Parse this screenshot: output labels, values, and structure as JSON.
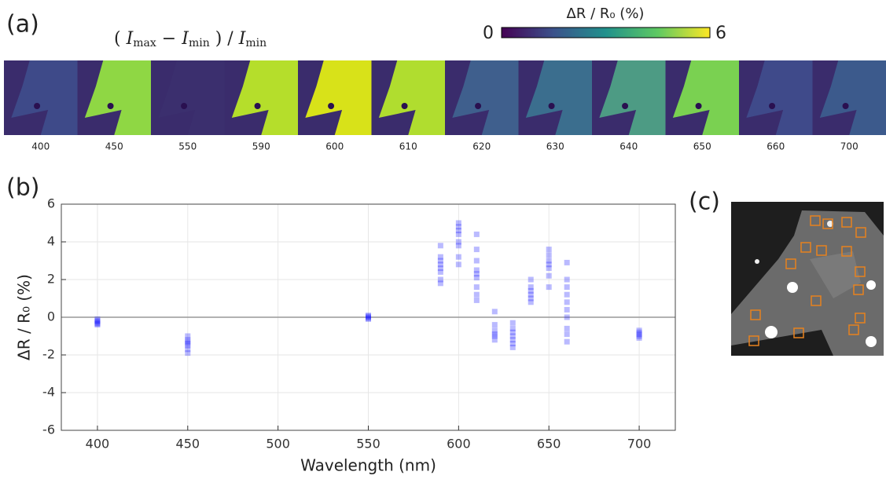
{
  "panel_labels": [
    "(a)",
    "(b)",
    "(c)"
  ],
  "formula": [
    "( ",
    "I",
    "max",
    " − ",
    "I",
    "min",
    " ) / ",
    "I",
    "min"
  ],
  "colorbar": {
    "label": "ΔR / R₀  (%)",
    "ticks": [
      0,
      6
    ]
  },
  "image_strip": {
    "labels": [
      400,
      450,
      550,
      590,
      600,
      610,
      620,
      630,
      640,
      650,
      660,
      700
    ]
  },
  "chart_data": {
    "type": "scatter",
    "xlabel": "Wavelength (nm)",
    "ylabel": "ΔR / R₀  (%)",
    "xlim": [
      380,
      720
    ],
    "xticks": [
      400,
      450,
      500,
      550,
      600,
      650,
      700
    ],
    "ylim": [
      -6,
      6
    ],
    "yticks": [
      -6,
      -4,
      -2,
      0,
      2,
      4,
      6
    ],
    "grid": true,
    "series": [
      {
        "color": "#1a1aff",
        "x": [
          400,
          400,
          400,
          400,
          400,
          400,
          450,
          450,
          450,
          450,
          450,
          450,
          450,
          550,
          550,
          550,
          550,
          550,
          590,
          590,
          590,
          590,
          590,
          590,
          590,
          590,
          600,
          600,
          600,
          600,
          600,
          600,
          600,
          600,
          610,
          610,
          610,
          610,
          610,
          610,
          610,
          610,
          610,
          620,
          620,
          620,
          620,
          620,
          620,
          630,
          630,
          630,
          630,
          630,
          630,
          630,
          640,
          640,
          640,
          640,
          640,
          640,
          650,
          650,
          650,
          650,
          650,
          650,
          650,
          660,
          660,
          660,
          660,
          660,
          660,
          660,
          660,
          660,
          660,
          700,
          700,
          700,
          700,
          700
        ],
        "values": [
          -0.1,
          -0.2,
          -0.3,
          -0.35,
          -0.4,
          -0.2,
          -1.0,
          -1.2,
          -1.4,
          -1.5,
          -1.7,
          -1.9,
          -1.3,
          0.1,
          0.0,
          -0.1,
          -0.05,
          0.05,
          3.8,
          3.0,
          2.8,
          2.6,
          2.4,
          2.0,
          1.8,
          3.2,
          5.0,
          4.8,
          4.6,
          4.4,
          4.0,
          3.8,
          3.2,
          2.8,
          4.4,
          3.6,
          3.0,
          2.5,
          2.3,
          2.1,
          1.6,
          1.2,
          0.9,
          0.3,
          -0.4,
          -0.7,
          -0.9,
          -1.0,
          -1.2,
          -0.3,
          -0.6,
          -0.8,
          -1.0,
          -1.2,
          -1.4,
          -1.6,
          2.0,
          1.6,
          1.4,
          1.2,
          1.0,
          0.8,
          3.6,
          3.3,
          3.0,
          2.8,
          2.6,
          2.2,
          1.6,
          2.9,
          2.0,
          1.6,
          1.2,
          0.8,
          0.4,
          0.0,
          -0.6,
          -0.9,
          -1.3,
          -0.7,
          -0.8,
          -0.9,
          -1.0,
          -1.1
        ]
      }
    ]
  }
}
